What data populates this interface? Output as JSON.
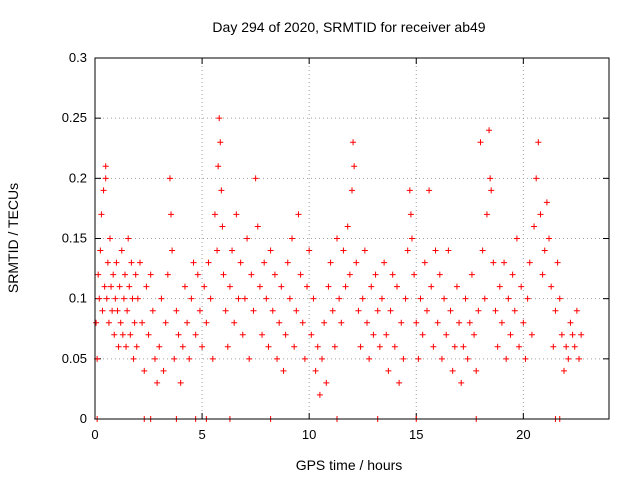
{
  "chart_data": {
    "type": "scatter",
    "title": "Day 294 of 2020, SRMTID for receiver ab49",
    "xlabel": "GPS time / hours",
    "ylabel": "SRMTID / TECUs",
    "xlim": [
      0,
      24
    ],
    "ylim": [
      0,
      0.3
    ],
    "xticks": [
      0,
      5,
      10,
      15,
      20
    ],
    "xtick_labels": [
      "0",
      "5",
      "10",
      "15",
      "20"
    ],
    "yticks": [
      0,
      0.05,
      0.1,
      0.15,
      0.2,
      0.25,
      0.3
    ],
    "ytick_labels": [
      "0",
      "0.05",
      "0.1",
      "0.15",
      "0.2",
      "0.25",
      "0.3"
    ],
    "grid": true,
    "marker": "+",
    "color": "#ff0000",
    "series": [
      {
        "name": "SRMTID",
        "points": [
          [
            0.05,
            0.08
          ],
          [
            0.1,
            0.05
          ],
          [
            0.15,
            0.12
          ],
          [
            0.2,
            0.1
          ],
          [
            0.25,
            0.14
          ],
          [
            0.3,
            0.17
          ],
          [
            0.35,
            0.09
          ],
          [
            0.4,
            0.19
          ],
          [
            0.45,
            0.11
          ],
          [
            0.5,
            0.2
          ],
          [
            0.5,
            0.21
          ],
          [
            0.55,
            0.1
          ],
          [
            0.6,
            0.13
          ],
          [
            0.65,
            0.08
          ],
          [
            0.7,
            0.15
          ],
          [
            0.75,
            0.11
          ],
          [
            0.8,
            0.09
          ],
          [
            0.85,
            0.12
          ],
          [
            0.9,
            0.07
          ],
          [
            0.95,
            0.1
          ],
          [
            1.0,
            0.13
          ],
          [
            1.05,
            0.09
          ],
          [
            1.1,
            0.06
          ],
          [
            1.15,
            0.11
          ],
          [
            1.2,
            0.08
          ],
          [
            1.25,
            0.14
          ],
          [
            1.3,
            0.07
          ],
          [
            1.35,
            0.1
          ],
          [
            1.4,
            0.12
          ],
          [
            1.45,
            0.06
          ],
          [
            1.5,
            0.09
          ],
          [
            1.55,
            0.15
          ],
          [
            1.6,
            0.11
          ],
          [
            1.65,
            0.07
          ],
          [
            1.7,
            0.13
          ],
          [
            1.75,
            0.1
          ],
          [
            1.8,
            0.05
          ],
          [
            1.85,
            0.08
          ],
          [
            1.9,
            0.12
          ],
          [
            1.95,
            0.06
          ],
          [
            2.0,
            0.1
          ],
          [
            2.1,
            0.13
          ],
          [
            2.2,
            0.08
          ],
          [
            2.3,
            0.04
          ],
          [
            2.4,
            0.11
          ],
          [
            2.5,
            0.07
          ],
          [
            2.6,
            0.12
          ],
          [
            2.7,
            0.09
          ],
          [
            2.8,
            0.05
          ],
          [
            2.9,
            0.03
          ],
          [
            3.0,
            0.06
          ],
          [
            3.1,
            0.1
          ],
          [
            3.2,
            0.04
          ],
          [
            3.3,
            0.08
          ],
          [
            3.4,
            0.12
          ],
          [
            3.5,
            0.2
          ],
          [
            3.55,
            0.17
          ],
          [
            3.6,
            0.14
          ],
          [
            3.7,
            0.05
          ],
          [
            3.8,
            0.09
          ],
          [
            3.9,
            0.07
          ],
          [
            4.0,
            0.03
          ],
          [
            4.1,
            0.06
          ],
          [
            4.2,
            0.11
          ],
          [
            4.3,
            0.08
          ],
          [
            4.4,
            0.05
          ],
          [
            4.5,
            0.1
          ],
          [
            4.6,
            0.13
          ],
          [
            4.7,
            0.07
          ],
          [
            4.8,
            0.12
          ],
          [
            4.9,
            0.09
          ],
          [
            5.0,
            0.06
          ],
          [
            5.1,
            0.11
          ],
          [
            5.2,
            0.08
          ],
          [
            5.3,
            0.13
          ],
          [
            5.4,
            0.1
          ],
          [
            5.5,
            0.05
          ],
          [
            5.6,
            0.17
          ],
          [
            5.7,
            0.14
          ],
          [
            5.75,
            0.21
          ],
          [
            5.8,
            0.25
          ],
          [
            5.85,
            0.23
          ],
          [
            5.9,
            0.19
          ],
          [
            5.95,
            0.16
          ],
          [
            6.0,
            0.12
          ],
          [
            6.1,
            0.09
          ],
          [
            6.2,
            0.06
          ],
          [
            6.3,
            0.11
          ],
          [
            6.4,
            0.14
          ],
          [
            6.5,
            0.08
          ],
          [
            6.6,
            0.17
          ],
          [
            6.7,
            0.1
          ],
          [
            6.8,
            0.13
          ],
          [
            6.9,
            0.07
          ],
          [
            7.0,
            0.1
          ],
          [
            7.1,
            0.15
          ],
          [
            7.2,
            0.05
          ],
          [
            7.3,
            0.12
          ],
          [
            7.4,
            0.09
          ],
          [
            7.5,
            0.2
          ],
          [
            7.6,
            0.16
          ],
          [
            7.7,
            0.11
          ],
          [
            7.8,
            0.07
          ],
          [
            7.9,
            0.13
          ],
          [
            8.0,
            0.1
          ],
          [
            8.1,
            0.06
          ],
          [
            8.2,
            0.14
          ],
          [
            8.3,
            0.09
          ],
          [
            8.4,
            0.12
          ],
          [
            8.5,
            0.05
          ],
          [
            8.6,
            0.08
          ],
          [
            8.7,
            0.11
          ],
          [
            8.8,
            0.04
          ],
          [
            8.9,
            0.07
          ],
          [
            9.0,
            0.13
          ],
          [
            9.1,
            0.1
          ],
          [
            9.2,
            0.15
          ],
          [
            9.3,
            0.06
          ],
          [
            9.4,
            0.09
          ],
          [
            9.5,
            0.17
          ],
          [
            9.6,
            0.12
          ],
          [
            9.7,
            0.08
          ],
          [
            9.8,
            0.05
          ],
          [
            9.9,
            0.11
          ],
          [
            10.0,
            0.14
          ],
          [
            10.1,
            0.07
          ],
          [
            10.2,
            0.1
          ],
          [
            10.3,
            0.04
          ],
          [
            10.4,
            0.06
          ],
          [
            10.5,
            0.02
          ],
          [
            10.6,
            0.05
          ],
          [
            10.7,
            0.08
          ],
          [
            10.8,
            0.03
          ],
          [
            10.9,
            0.11
          ],
          [
            11.0,
            0.13
          ],
          [
            11.1,
            0.09
          ],
          [
            11.2,
            0.06
          ],
          [
            11.3,
            0.15
          ],
          [
            11.4,
            0.1
          ],
          [
            11.5,
            0.08
          ],
          [
            11.6,
            0.14
          ],
          [
            11.7,
            0.11
          ],
          [
            11.8,
            0.16
          ],
          [
            11.9,
            0.12
          ],
          [
            12.0,
            0.19
          ],
          [
            12.05,
            0.23
          ],
          [
            12.1,
            0.21
          ],
          [
            12.2,
            0.13
          ],
          [
            12.3,
            0.09
          ],
          [
            12.4,
            0.06
          ],
          [
            12.5,
            0.1
          ],
          [
            12.6,
            0.14
          ],
          [
            12.7,
            0.08
          ],
          [
            12.8,
            0.05
          ],
          [
            12.9,
            0.11
          ],
          [
            13.0,
            0.07
          ],
          [
            13.1,
            0.12
          ],
          [
            13.2,
            0.09
          ],
          [
            13.3,
            0.06
          ],
          [
            13.4,
            0.1
          ],
          [
            13.5,
            0.13
          ],
          [
            13.6,
            0.07
          ],
          [
            13.7,
            0.04
          ],
          [
            13.8,
            0.09
          ],
          [
            13.9,
            0.12
          ],
          [
            14.0,
            0.06
          ],
          [
            14.1,
            0.11
          ],
          [
            14.2,
            0.03
          ],
          [
            14.3,
            0.08
          ],
          [
            14.4,
            0.05
          ],
          [
            14.5,
            0.1
          ],
          [
            14.6,
            0.14
          ],
          [
            14.7,
            0.19
          ],
          [
            14.75,
            0.17
          ],
          [
            14.8,
            0.15
          ],
          [
            14.9,
            0.12
          ],
          [
            15.0,
            0.08
          ],
          [
            15.1,
            0.05
          ],
          [
            15.2,
            0.1
          ],
          [
            15.3,
            0.07
          ],
          [
            15.4,
            0.13
          ],
          [
            15.5,
            0.09
          ],
          [
            15.6,
            0.19
          ],
          [
            15.7,
            0.11
          ],
          [
            15.8,
            0.06
          ],
          [
            15.9,
            0.14
          ],
          [
            16.0,
            0.08
          ],
          [
            16.1,
            0.12
          ],
          [
            16.2,
            0.05
          ],
          [
            16.3,
            0.1
          ],
          [
            16.4,
            0.07
          ],
          [
            16.5,
            0.14
          ],
          [
            16.6,
            0.09
          ],
          [
            16.7,
            0.04
          ],
          [
            16.8,
            0.06
          ],
          [
            16.9,
            0.11
          ],
          [
            17.0,
            0.08
          ],
          [
            17.1,
            0.03
          ],
          [
            17.2,
            0.06
          ],
          [
            17.3,
            0.1
          ],
          [
            17.4,
            0.05
          ],
          [
            17.5,
            0.08
          ],
          [
            17.6,
            0.12
          ],
          [
            17.7,
            0.07
          ],
          [
            17.8,
            0.04
          ],
          [
            17.9,
            0.09
          ],
          [
            18.0,
            0.23
          ],
          [
            18.1,
            0.14
          ],
          [
            18.2,
            0.1
          ],
          [
            18.3,
            0.17
          ],
          [
            18.4,
            0.24
          ],
          [
            18.45,
            0.2
          ],
          [
            18.5,
            0.19
          ],
          [
            18.6,
            0.13
          ],
          [
            18.7,
            0.09
          ],
          [
            18.8,
            0.06
          ],
          [
            18.9,
            0.11
          ],
          [
            19.0,
            0.08
          ],
          [
            19.1,
            0.13
          ],
          [
            19.2,
            0.05
          ],
          [
            19.3,
            0.1
          ],
          [
            19.4,
            0.07
          ],
          [
            19.5,
            0.12
          ],
          [
            19.6,
            0.09
          ],
          [
            19.7,
            0.15
          ],
          [
            19.8,
            0.06
          ],
          [
            19.9,
            0.11
          ],
          [
            20.0,
            0.08
          ],
          [
            20.1,
            0.05
          ],
          [
            20.2,
            0.1
          ],
          [
            20.3,
            0.13
          ],
          [
            20.4,
            0.07
          ],
          [
            20.5,
            0.16
          ],
          [
            20.6,
            0.2
          ],
          [
            20.7,
            0.23
          ],
          [
            20.8,
            0.17
          ],
          [
            20.9,
            0.12
          ],
          [
            21.0,
            0.14
          ],
          [
            21.1,
            0.18
          ],
          [
            21.2,
            0.15
          ],
          [
            21.3,
            0.11
          ],
          [
            21.4,
            0.06
          ],
          [
            21.5,
            0.09
          ],
          [
            21.6,
            0.13
          ],
          [
            21.7,
            0.1
          ],
          [
            21.8,
            0.07
          ],
          [
            21.9,
            0.04
          ],
          [
            22.0,
            0.06
          ],
          [
            22.1,
            0.05
          ],
          [
            22.2,
            0.08
          ],
          [
            22.3,
            0.07
          ],
          [
            22.4,
            0.06
          ],
          [
            22.5,
            0.09
          ],
          [
            22.6,
            0.05
          ],
          [
            22.7,
            0.07
          ],
          [
            0.1,
            0.0
          ],
          [
            2.3,
            0.0
          ],
          [
            2.6,
            0.0
          ],
          [
            3.8,
            0.0
          ],
          [
            4.7,
            0.0
          ],
          [
            5.2,
            0.0
          ],
          [
            6.3,
            0.0
          ],
          [
            8.2,
            0.0
          ],
          [
            11.3,
            0.0
          ],
          [
            13.2,
            0.0
          ],
          [
            15.0,
            0.0
          ],
          [
            17.8,
            0.0
          ],
          [
            21.5,
            0.0
          ],
          [
            21.7,
            0.0
          ]
        ]
      }
    ]
  }
}
